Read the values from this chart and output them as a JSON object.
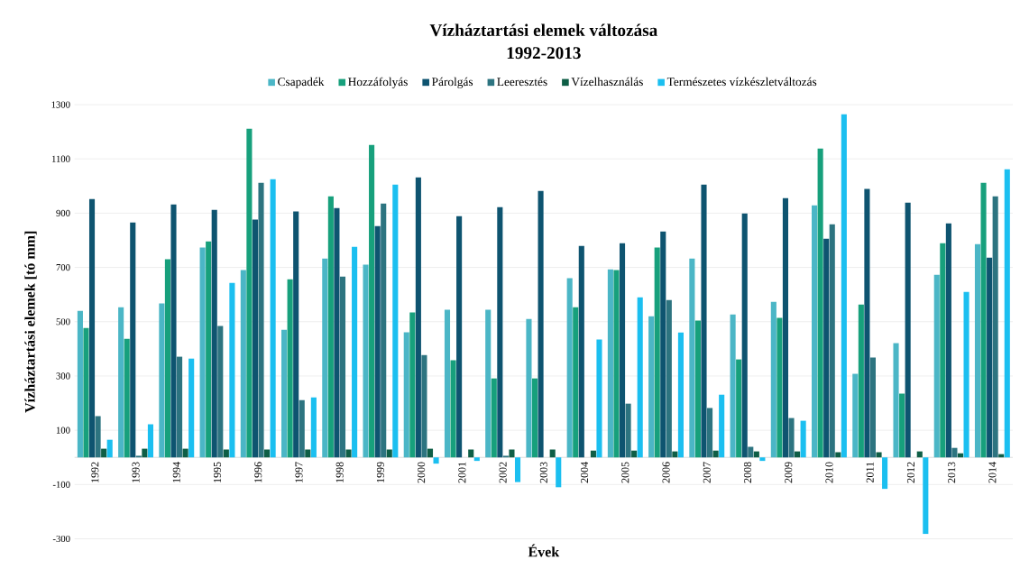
{
  "chart_data": {
    "type": "bar",
    "title": "Vízháztartási  elemek változása",
    "subtitle": "1992-2013",
    "xlabel": "Évek",
    "ylabel": "Vízháztartási elemek [tó mm]",
    "categories": [
      "1992",
      "1993",
      "1994",
      "1995",
      "1996",
      "1997",
      "1998",
      "1999",
      "2000",
      "2001",
      "2002",
      "2003",
      "2004",
      "2005",
      "2006",
      "2007",
      "2008",
      "2009",
      "2010",
      "2011",
      "2012",
      "2013",
      "2014"
    ],
    "series": [
      {
        "name": "Csapadék",
        "color": "#4bb6c6",
        "values": [
          540,
          553,
          567,
          773,
          690,
          470,
          733,
          710,
          461,
          544,
          544,
          510,
          660,
          693,
          520,
          733,
          527,
          573,
          929,
          308,
          421,
          673,
          786
        ]
      },
      {
        "name": "Hozzáfolyás",
        "color": "#17a07c",
        "values": [
          477,
          437,
          730,
          796,
          1211,
          656,
          962,
          1151,
          534,
          358,
          291,
          291,
          553,
          690,
          773,
          504,
          361,
          514,
          1138,
          563,
          235,
          789,
          1012
        ]
      },
      {
        "name": "Párolgás",
        "color": "#0e5470",
        "values": [
          952,
          866,
          932,
          912,
          876,
          906,
          919,
          852,
          1032,
          889,
          922,
          982,
          779,
          789,
          832,
          1005,
          899,
          955,
          806,
          989,
          939,
          862,
          736
        ]
      },
      {
        "name": "Leeresztés",
        "color": "#2d7480",
        "values": [
          152,
          6,
          371,
          484,
          1012,
          211,
          666,
          935,
          377,
          null,
          6,
          null,
          null,
          198,
          580,
          182,
          39,
          145,
          859,
          368,
          null,
          35,
          962
        ]
      },
      {
        "name": "Vízelhasználás",
        "color": "#0e5e46",
        "values": [
          32,
          32,
          32,
          29,
          29,
          29,
          29,
          29,
          32,
          29,
          29,
          29,
          25,
          25,
          22,
          25,
          22,
          22,
          19,
          19,
          22,
          15,
          12
        ]
      },
      {
        "name": "Természetes vízkészletváltozás",
        "color": "#1bbff0",
        "values": [
          65,
          122,
          364,
          643,
          1025,
          221,
          776,
          1005,
          -23,
          -13,
          -91,
          -110,
          434,
          590,
          460,
          231,
          -13,
          135,
          1264,
          -116,
          -282,
          610,
          1062
        ]
      }
    ],
    "ylim": [
      -300,
      1300
    ],
    "yticks": [
      -300,
      -100,
      100,
      300,
      500,
      700,
      900,
      1100,
      1300
    ],
    "grid": "y",
    "legend": "top"
  }
}
